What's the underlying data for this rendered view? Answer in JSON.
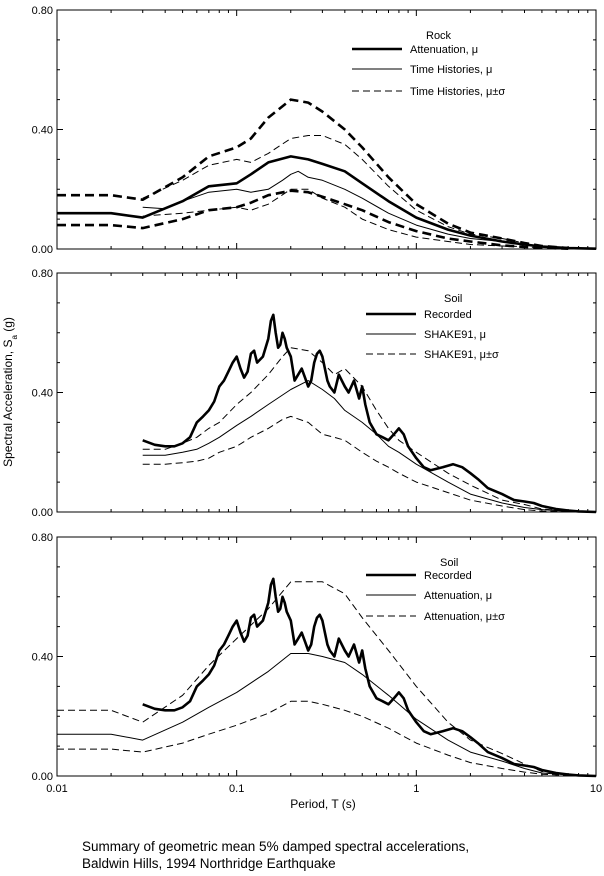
{
  "caption": {
    "line1": "Summary of geometric mean 5% damped spectral accelerations,",
    "line2": "Baldwin Hills, 1994 Northridge Earthquake"
  },
  "chart_data": [
    {
      "type": "line",
      "panel": "top",
      "title": "Rock",
      "xscale": "log",
      "xlim": [
        0.01,
        10
      ],
      "ylim": [
        0,
        0.8
      ],
      "y_ticks": [
        "0.00",
        "0.40",
        "0.80"
      ],
      "x_ticks": [],
      "legend_placement": "top-right",
      "series": [
        {
          "name": "Attenuation, μ",
          "style": "thick",
          "x": [
            0.01,
            0.02,
            0.03,
            0.05,
            0.07,
            0.1,
            0.12,
            0.15,
            0.2,
            0.25,
            0.3,
            0.4,
            0.5,
            0.7,
            1.0,
            1.5,
            2.0,
            3.0,
            4.0,
            5.0,
            7.0,
            10.0
          ],
          "y": [
            0.12,
            0.12,
            0.105,
            0.16,
            0.21,
            0.22,
            0.25,
            0.29,
            0.31,
            0.3,
            0.285,
            0.26,
            0.22,
            0.16,
            0.105,
            0.065,
            0.045,
            0.025,
            0.015,
            0.008,
            0.003,
            0.001
          ]
        },
        {
          "name": "Time Histories, μ",
          "style": "thin",
          "x": [
            0.03,
            0.04,
            0.05,
            0.07,
            0.1,
            0.12,
            0.15,
            0.18,
            0.2,
            0.22,
            0.25,
            0.3,
            0.4,
            0.5,
            0.7,
            1.0,
            1.5,
            2.0,
            3.0,
            4.0,
            5.0
          ],
          "y": [
            0.14,
            0.135,
            0.16,
            0.19,
            0.2,
            0.19,
            0.2,
            0.23,
            0.25,
            0.26,
            0.24,
            0.23,
            0.2,
            0.17,
            0.12,
            0.08,
            0.05,
            0.035,
            0.025,
            0.015,
            0.005
          ]
        },
        {
          "name": "Time Histories, μ±σ",
          "style": "dashed",
          "x": [
            0.03,
            0.05,
            0.07,
            0.1,
            0.12,
            0.15,
            0.2,
            0.25,
            0.3,
            0.4,
            0.5,
            0.7,
            1.0,
            1.5,
            2.0,
            3.0,
            4.0,
            5.0
          ],
          "y": [
            0.17,
            0.23,
            0.28,
            0.3,
            0.29,
            0.32,
            0.37,
            0.38,
            0.38,
            0.35,
            0.3,
            0.21,
            0.13,
            0.075,
            0.05,
            0.035,
            0.02,
            0.005
          ]
        },
        {
          "name": "",
          "style": "dashed",
          "x": [
            0.03,
            0.05,
            0.07,
            0.1,
            0.12,
            0.15,
            0.2,
            0.25,
            0.3,
            0.4,
            0.5,
            0.7,
            1.0,
            1.5,
            2.0,
            3.0,
            4.0,
            5.0
          ],
          "y": [
            0.11,
            0.12,
            0.13,
            0.14,
            0.13,
            0.15,
            0.2,
            0.2,
            0.17,
            0.14,
            0.1,
            0.065,
            0.04,
            0.025,
            0.015,
            0.01,
            0.008,
            0.003
          ]
        },
        {
          "name": "",
          "style": "thick-dashed",
          "x": [
            0.01,
            0.02,
            0.03,
            0.05,
            0.07,
            0.1,
            0.12,
            0.15,
            0.2,
            0.25,
            0.3,
            0.4,
            0.5,
            0.7,
            1.0,
            1.5,
            2.0,
            3.0,
            4.0,
            5.0,
            7.0
          ],
          "y": [
            0.18,
            0.18,
            0.165,
            0.24,
            0.31,
            0.34,
            0.37,
            0.44,
            0.5,
            0.49,
            0.46,
            0.4,
            0.34,
            0.24,
            0.15,
            0.085,
            0.055,
            0.035,
            0.02,
            0.01,
            0.003
          ]
        },
        {
          "name": "",
          "style": "thick-dashed",
          "x": [
            0.01,
            0.02,
            0.03,
            0.05,
            0.07,
            0.1,
            0.12,
            0.15,
            0.2,
            0.25,
            0.3,
            0.4,
            0.5,
            0.7,
            1.0,
            1.5,
            2.0,
            3.0,
            4.0,
            5.0,
            7.0
          ],
          "y": [
            0.08,
            0.08,
            0.07,
            0.1,
            0.13,
            0.14,
            0.155,
            0.18,
            0.195,
            0.19,
            0.175,
            0.15,
            0.13,
            0.09,
            0.06,
            0.035,
            0.025,
            0.012,
            0.007,
            0.004,
            0.001
          ]
        }
      ]
    },
    {
      "type": "line",
      "panel": "middle",
      "title": "Soil",
      "ylabel": "Spectral Acceleration, S",
      "ylabel_sub": "a",
      "ylabel_unit": " (g)",
      "xscale": "log",
      "xlim": [
        0.01,
        10
      ],
      "ylim": [
        0,
        0.8
      ],
      "y_ticks": [
        "0.00",
        "0.40",
        "0.80"
      ],
      "x_ticks": [],
      "legend_placement": "top-right",
      "series": [
        {
          "name": "Recorded",
          "style": "thick",
          "x": [
            0.03,
            0.035,
            0.04,
            0.045,
            0.05,
            0.055,
            0.06,
            0.065,
            0.07,
            0.075,
            0.08,
            0.085,
            0.09,
            0.095,
            0.1,
            0.105,
            0.11,
            0.115,
            0.12,
            0.125,
            0.13,
            0.14,
            0.15,
            0.155,
            0.16,
            0.165,
            0.17,
            0.175,
            0.18,
            0.185,
            0.19,
            0.2,
            0.21,
            0.22,
            0.23,
            0.24,
            0.25,
            0.26,
            0.27,
            0.28,
            0.29,
            0.3,
            0.31,
            0.32,
            0.33,
            0.35,
            0.37,
            0.4,
            0.42,
            0.45,
            0.48,
            0.5,
            0.52,
            0.55,
            0.6,
            0.65,
            0.7,
            0.75,
            0.8,
            0.85,
            0.9,
            1.0,
            1.1,
            1.2,
            1.4,
            1.6,
            1.8,
            2.0,
            2.2,
            2.5,
            3.0,
            3.5,
            4.0,
            4.5,
            5.0,
            6.0,
            7.0,
            8.0,
            10.0
          ],
          "y": [
            0.24,
            0.225,
            0.22,
            0.22,
            0.23,
            0.25,
            0.3,
            0.32,
            0.34,
            0.37,
            0.42,
            0.44,
            0.47,
            0.5,
            0.52,
            0.48,
            0.45,
            0.47,
            0.53,
            0.54,
            0.5,
            0.52,
            0.58,
            0.64,
            0.66,
            0.6,
            0.55,
            0.56,
            0.6,
            0.58,
            0.55,
            0.52,
            0.44,
            0.46,
            0.48,
            0.45,
            0.42,
            0.44,
            0.5,
            0.53,
            0.54,
            0.52,
            0.48,
            0.44,
            0.42,
            0.4,
            0.46,
            0.42,
            0.4,
            0.44,
            0.38,
            0.42,
            0.36,
            0.3,
            0.26,
            0.25,
            0.24,
            0.26,
            0.28,
            0.26,
            0.22,
            0.18,
            0.15,
            0.14,
            0.15,
            0.16,
            0.15,
            0.13,
            0.11,
            0.08,
            0.06,
            0.04,
            0.035,
            0.03,
            0.02,
            0.01,
            0.005,
            0.002,
            0.0
          ]
        },
        {
          "name": "SHAKE91, μ",
          "style": "thin",
          "x": [
            0.03,
            0.04,
            0.05,
            0.06,
            0.07,
            0.08,
            0.1,
            0.12,
            0.15,
            0.2,
            0.25,
            0.3,
            0.35,
            0.4,
            0.5,
            0.6,
            0.7,
            0.8,
            1.0,
            1.5,
            2.0,
            3.0,
            4.0,
            5.0,
            7.0,
            10.0
          ],
          "y": [
            0.19,
            0.19,
            0.2,
            0.21,
            0.23,
            0.25,
            0.29,
            0.32,
            0.36,
            0.41,
            0.44,
            0.41,
            0.38,
            0.34,
            0.3,
            0.26,
            0.22,
            0.2,
            0.16,
            0.1,
            0.06,
            0.03,
            0.015,
            0.008,
            0.002,
            0.0
          ]
        },
        {
          "name": "SHAKE91, μ±σ",
          "style": "dashed",
          "x": [
            0.03,
            0.04,
            0.05,
            0.06,
            0.07,
            0.08,
            0.1,
            0.12,
            0.15,
            0.18,
            0.2,
            0.25,
            0.3,
            0.35,
            0.4,
            0.5,
            0.6,
            0.7,
            0.8,
            1.0,
            1.5,
            2.0,
            3.0,
            4.0,
            5.0,
            7.0,
            10.0
          ],
          "y": [
            0.21,
            0.21,
            0.23,
            0.25,
            0.28,
            0.3,
            0.36,
            0.4,
            0.46,
            0.52,
            0.55,
            0.54,
            0.5,
            0.46,
            0.48,
            0.42,
            0.34,
            0.28,
            0.24,
            0.2,
            0.13,
            0.09,
            0.04,
            0.025,
            0.01,
            0.003,
            0.0
          ]
        },
        {
          "name": "",
          "style": "dashed",
          "x": [
            0.03,
            0.04,
            0.05,
            0.06,
            0.07,
            0.08,
            0.1,
            0.12,
            0.15,
            0.18,
            0.2,
            0.25,
            0.3,
            0.35,
            0.4,
            0.5,
            0.6,
            0.7,
            0.8,
            1.0,
            1.5,
            2.0,
            3.0,
            4.0,
            5.0,
            7.0,
            10.0
          ],
          "y": [
            0.16,
            0.16,
            0.165,
            0.17,
            0.18,
            0.2,
            0.22,
            0.25,
            0.28,
            0.31,
            0.32,
            0.3,
            0.26,
            0.25,
            0.24,
            0.2,
            0.17,
            0.15,
            0.13,
            0.1,
            0.065,
            0.04,
            0.02,
            0.008,
            0.003,
            0.001,
            0.0
          ]
        }
      ]
    },
    {
      "type": "line",
      "panel": "bottom",
      "title": "Soil",
      "xlabel": "Period, T (s)",
      "xscale": "log",
      "xlim": [
        0.01,
        10
      ],
      "ylim": [
        0,
        0.8
      ],
      "y_ticks": [
        "0.00",
        "0.40",
        "0.80"
      ],
      "x_ticks": [
        "0.01",
        "0.1",
        "1",
        "10"
      ],
      "legend_placement": "top-right",
      "series": [
        {
          "name": "Recorded",
          "style": "thick",
          "x": [
            0.03,
            0.035,
            0.04,
            0.045,
            0.05,
            0.055,
            0.06,
            0.065,
            0.07,
            0.075,
            0.08,
            0.085,
            0.09,
            0.095,
            0.1,
            0.105,
            0.11,
            0.115,
            0.12,
            0.125,
            0.13,
            0.14,
            0.15,
            0.155,
            0.16,
            0.165,
            0.17,
            0.175,
            0.18,
            0.185,
            0.19,
            0.2,
            0.21,
            0.22,
            0.23,
            0.24,
            0.25,
            0.26,
            0.27,
            0.28,
            0.29,
            0.3,
            0.31,
            0.32,
            0.33,
            0.35,
            0.37,
            0.4,
            0.42,
            0.45,
            0.48,
            0.5,
            0.52,
            0.55,
            0.6,
            0.65,
            0.7,
            0.75,
            0.8,
            0.85,
            0.9,
            1.0,
            1.1,
            1.2,
            1.4,
            1.6,
            1.8,
            2.0,
            2.2,
            2.5,
            3.0,
            3.5,
            4.0,
            4.5,
            5.0,
            6.0,
            7.0,
            8.0,
            10.0
          ],
          "y": [
            0.24,
            0.225,
            0.22,
            0.22,
            0.23,
            0.25,
            0.3,
            0.32,
            0.34,
            0.37,
            0.42,
            0.44,
            0.47,
            0.5,
            0.52,
            0.48,
            0.45,
            0.47,
            0.53,
            0.54,
            0.5,
            0.52,
            0.58,
            0.64,
            0.66,
            0.6,
            0.55,
            0.56,
            0.6,
            0.58,
            0.55,
            0.52,
            0.44,
            0.46,
            0.48,
            0.45,
            0.42,
            0.44,
            0.5,
            0.53,
            0.54,
            0.52,
            0.48,
            0.44,
            0.42,
            0.4,
            0.46,
            0.42,
            0.4,
            0.44,
            0.38,
            0.42,
            0.36,
            0.3,
            0.26,
            0.25,
            0.24,
            0.26,
            0.28,
            0.26,
            0.22,
            0.18,
            0.15,
            0.14,
            0.15,
            0.16,
            0.15,
            0.13,
            0.11,
            0.08,
            0.06,
            0.04,
            0.035,
            0.03,
            0.02,
            0.01,
            0.005,
            0.002,
            0.0
          ]
        },
        {
          "name": "Attenuation, μ",
          "style": "thin",
          "x": [
            0.01,
            0.02,
            0.03,
            0.05,
            0.07,
            0.1,
            0.15,
            0.2,
            0.25,
            0.3,
            0.4,
            0.5,
            0.7,
            1.0,
            1.5,
            2.0,
            3.0,
            4.0,
            5.0,
            7.0,
            10.0
          ],
          "y": [
            0.14,
            0.14,
            0.12,
            0.18,
            0.23,
            0.28,
            0.35,
            0.41,
            0.41,
            0.4,
            0.38,
            0.34,
            0.27,
            0.19,
            0.12,
            0.08,
            0.05,
            0.025,
            0.01,
            0.004,
            0.001
          ]
        },
        {
          "name": "Attenuation, μ±σ",
          "style": "dashed",
          "x": [
            0.01,
            0.02,
            0.03,
            0.05,
            0.07,
            0.1,
            0.15,
            0.2,
            0.25,
            0.3,
            0.4,
            0.5,
            0.7,
            1.0,
            1.5,
            2.0,
            3.0,
            4.0,
            5.0,
            7.0,
            10.0
          ],
          "y": [
            0.22,
            0.22,
            0.18,
            0.27,
            0.37,
            0.46,
            0.56,
            0.65,
            0.65,
            0.65,
            0.61,
            0.53,
            0.42,
            0.3,
            0.18,
            0.12,
            0.075,
            0.04,
            0.015,
            0.005,
            0.001
          ]
        },
        {
          "name": "",
          "style": "dashed",
          "x": [
            0.01,
            0.02,
            0.03,
            0.05,
            0.07,
            0.1,
            0.15,
            0.2,
            0.25,
            0.3,
            0.4,
            0.5,
            0.7,
            1.0,
            1.5,
            2.0,
            3.0,
            4.0,
            5.0,
            7.0,
            10.0
          ],
          "y": [
            0.09,
            0.09,
            0.08,
            0.11,
            0.14,
            0.17,
            0.21,
            0.25,
            0.25,
            0.24,
            0.22,
            0.2,
            0.16,
            0.11,
            0.07,
            0.045,
            0.025,
            0.013,
            0.006,
            0.002,
            0.0
          ]
        }
      ]
    }
  ]
}
